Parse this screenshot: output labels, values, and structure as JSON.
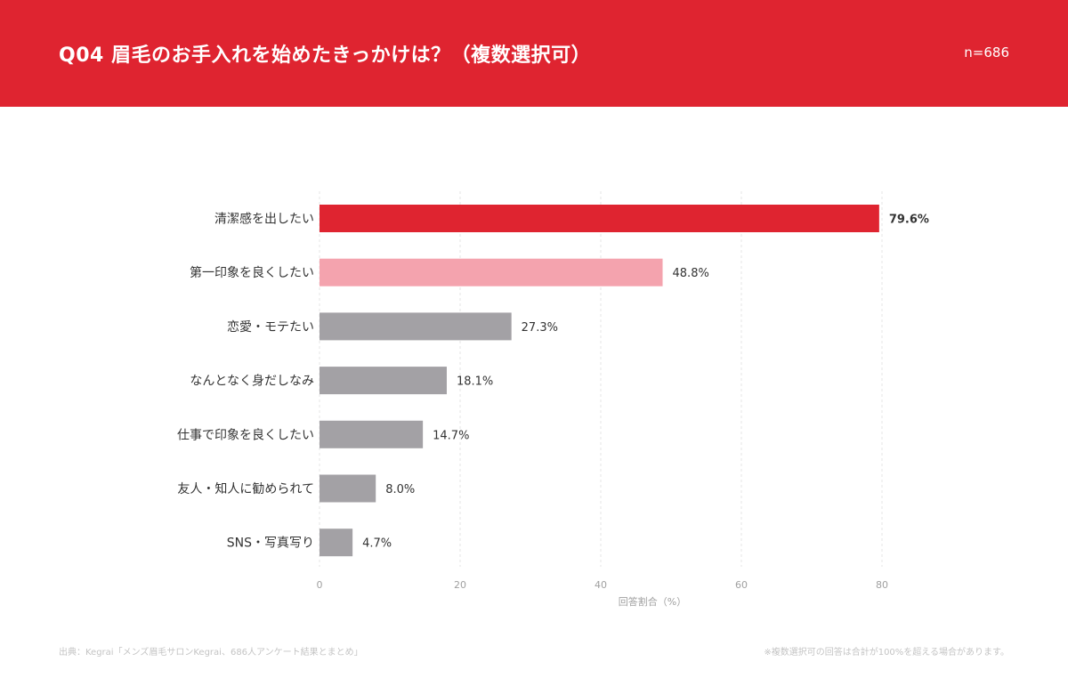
{
  "header": {
    "title": "Q04 眉毛のお手入れを始めたきっかけは？（複数選択可）",
    "sample_size": "n=686"
  },
  "chart_data": {
    "type": "bar",
    "orientation": "horizontal",
    "categories": [
      "清潔感を出したい",
      "第一印象を良くしたい",
      "恋愛・モテたい",
      "なんとなく身だしなみ",
      "仕事で印象を良くしたい",
      "友人・知人に勧められて",
      "SNS・写真写り"
    ],
    "values": [
      79.6,
      48.8,
      27.3,
      18.1,
      14.7,
      8.0,
      4.7
    ],
    "value_labels": [
      "79.6%",
      "48.8%",
      "27.3%",
      "18.1%",
      "14.7%",
      "8.0%",
      "4.7%"
    ],
    "bar_colors": [
      "#df2430",
      "#f4a3ae",
      "#a3a1a5",
      "#a3a1a5",
      "#a3a1a5",
      "#a3a1a5",
      "#a3a1a5"
    ],
    "xlabel": "回答割合（%）",
    "xticks": [
      0,
      20,
      40,
      60,
      80
    ],
    "xlim": [
      0,
      80
    ],
    "grid": true,
    "legend": "none"
  },
  "footer": {
    "source": "出典：Kegrai「メンズ眉毛サロンKegrai、686人アンケート結果とまとめ」",
    "note": "※複数選択可の回答は合計が100%を超える場合があります。"
  }
}
